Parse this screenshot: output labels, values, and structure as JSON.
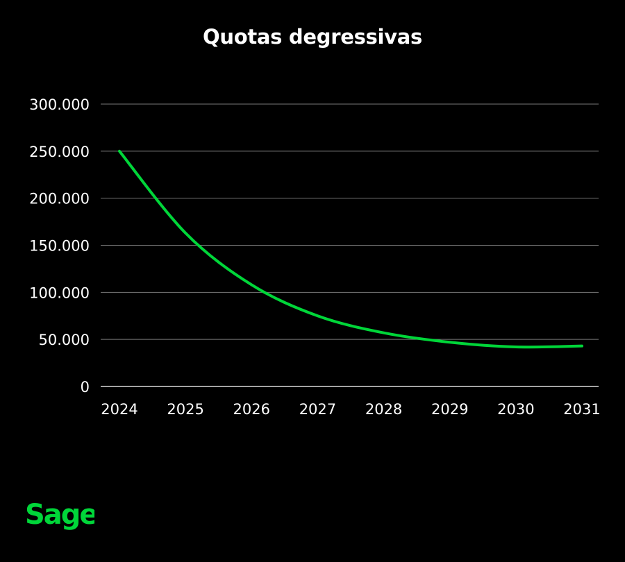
{
  "colors": {
    "background": "#000000",
    "line": "#00d639",
    "text": "#ffffff",
    "brand": "#00d639"
  },
  "brand": {
    "name": "Sage",
    "icon": "sage-logo-icon"
  },
  "chart_data": {
    "type": "line",
    "title": "Quotas degressivas",
    "xlabel": "",
    "ylabel": "",
    "categories": [
      "2024",
      "2025",
      "2026",
      "2027",
      "2028",
      "2029",
      "2030",
      "2031"
    ],
    "series": [
      {
        "values": [
          250000,
          163000,
          108000,
          75000,
          57000,
          47000,
          42000,
          43000
        ]
      }
    ],
    "ylim": [
      0,
      300000
    ],
    "yticks": [
      0,
      50000,
      100000,
      150000,
      200000,
      250000,
      300000
    ],
    "ytick_labels": [
      "0",
      "50.000",
      "100.000",
      "150.000",
      "200.000",
      "250.000",
      "300.000"
    ],
    "grid": true,
    "legend": "none",
    "smooth": true
  }
}
